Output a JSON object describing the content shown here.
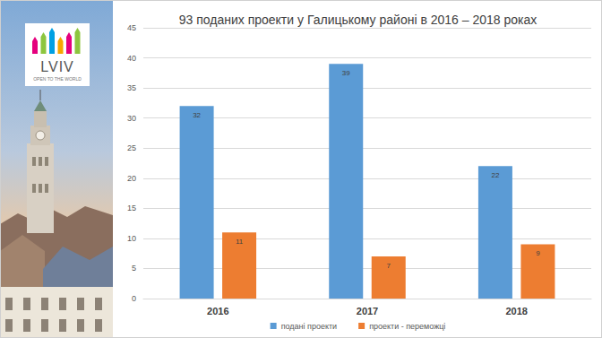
{
  "chart_data": {
    "type": "bar",
    "title": "93 поданих проекти у Галицькому районі в 2016 – 2018 роках",
    "categories": [
      "2016",
      "2017",
      "2018"
    ],
    "series": [
      {
        "name": "подані проекти",
        "color": "#5b9bd5",
        "values": [
          32,
          39,
          22
        ]
      },
      {
        "name": "проекти - переможці",
        "color": "#ed7d31",
        "values": [
          11,
          7,
          9
        ]
      }
    ],
    "ylim": [
      0,
      45
    ],
    "yticks": [
      0,
      5,
      10,
      15,
      20,
      25,
      30,
      35,
      40,
      45
    ],
    "grid": true,
    "legend": "bottom",
    "data_labels": true
  },
  "logo": {
    "text": "LVIV",
    "tagline": "OPEN TO THE WORLD"
  }
}
